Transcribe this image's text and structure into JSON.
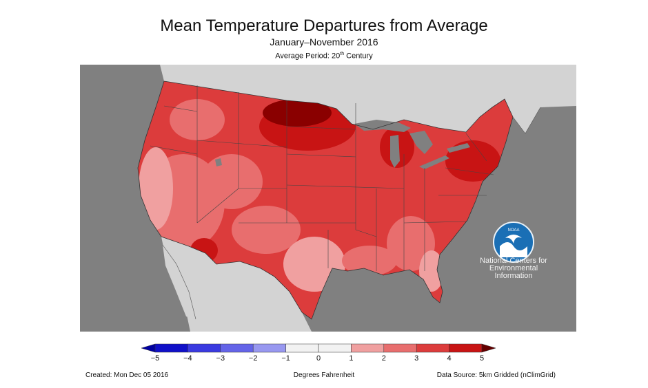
{
  "header": {
    "title": "Mean Temperature Departures from Average",
    "subtitle": "January–November 2016",
    "average_period_prefix": "Average Period: 20",
    "average_period_sup": "th",
    "average_period_suffix": " Century"
  },
  "logo": {
    "badge_text": "NOAA",
    "org_line1": "National Centers for",
    "org_line2": "Environmental",
    "org_line3": "Information"
  },
  "legend": {
    "unit": "Degrees Fahrenheit",
    "ticks": [
      "−5",
      "−4",
      "−3",
      "−2",
      "−1",
      "0",
      "1",
      "2",
      "3",
      "4",
      "5"
    ],
    "colors": [
      "#1010c8",
      "#3a3ae0",
      "#6464e8",
      "#9898f0",
      "#f2f2f2",
      "#f2f2f2",
      "#f0a0a0",
      "#e86e6e",
      "#dc3c3c",
      "#c81414"
    ],
    "under_color": "#0000a0",
    "over_color": "#640000"
  },
  "footer": {
    "created": "Created: Mon Dec 05 2016",
    "source": "Data Source: 5km Gridded (nClimGrid)"
  },
  "map_colors": {
    "ocean": "#808080",
    "land_outside": "#d3d3d3",
    "great_lakes": "#808080"
  }
}
